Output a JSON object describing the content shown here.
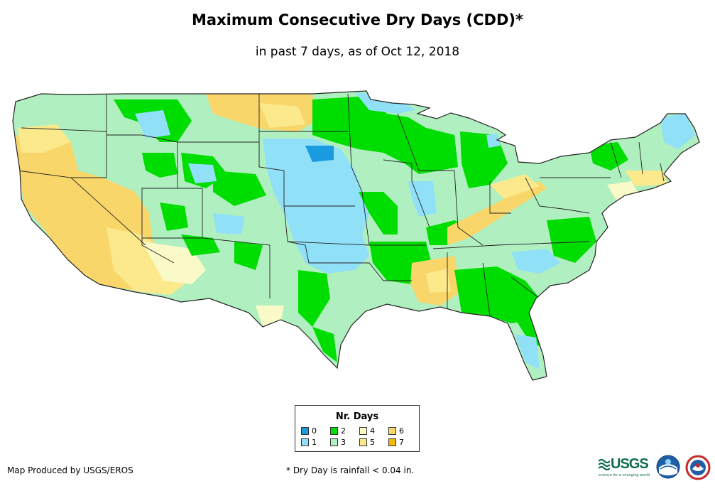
{
  "title": "Maximum Consecutive Dry Days (CDD)*",
  "subtitle": "in past 7 days, as of Oct 12, 2018",
  "legend": {
    "title": "Nr. Days",
    "items": [
      {
        "label": "0",
        "color": "#1a9be0"
      },
      {
        "label": "1",
        "color": "#90e0f7"
      },
      {
        "label": "2",
        "color": "#00dd00"
      },
      {
        "label": "3",
        "color": "#b0f0c0"
      },
      {
        "label": "4",
        "color": "#fafac8"
      },
      {
        "label": "5",
        "color": "#fbe98c"
      },
      {
        "label": "6",
        "color": "#f9d66a"
      },
      {
        "label": "7",
        "color": "#f3b900"
      }
    ]
  },
  "credit": "Map Produced by USGS/EROS",
  "footnote": "* Dry Day is rainfall < 0.04 in.",
  "logos": {
    "usgs": "USGS",
    "usgs_tagline": "science for a changing world"
  },
  "icons": {
    "usgs": "usgs-logo-icon",
    "noaa": "noaa-logo-icon",
    "nws": "nws-logo-icon"
  },
  "map": {
    "region": "Contiguous United States",
    "background": "#ffffff",
    "border_color": "#222222"
  }
}
